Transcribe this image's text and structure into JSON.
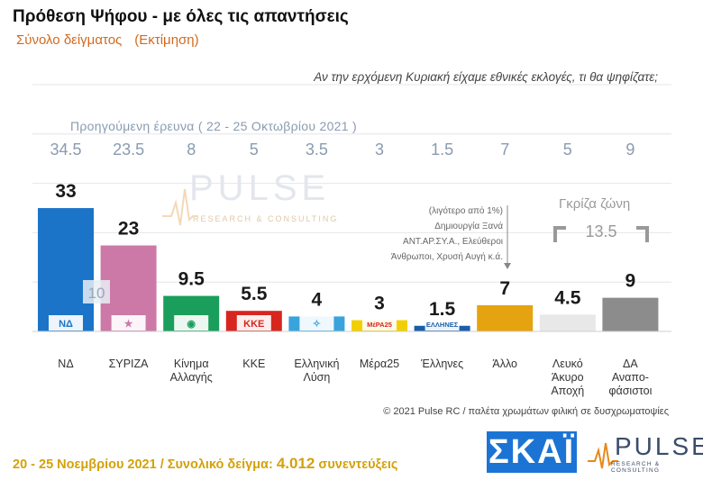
{
  "header": {
    "title": "Πρόθεση Ψήφου - με όλες τις απαντήσεις",
    "subtitle": "Σύνολο δείγματος",
    "subtitle_tag": "(Εκτίμηση)",
    "question": "Αν την ερχόμενη Κυριακή είχαμε εθνικές εκλογές, τι θα ψηφίζατε;",
    "previous_label": "Προηγούμενη έρευνα  ( 22 - 25 Οκτωβρίου 2021 )"
  },
  "chart_data": {
    "type": "bar",
    "categories": [
      "ΝΔ",
      "ΣΥΡΙΖΑ",
      "Κίνημα Αλλαγής",
      "ΚΚΕ",
      "Ελληνική Λύση",
      "Μέρα25",
      "Έλληνες",
      "Άλλο",
      "Λευκό Άκυρο Αποχή",
      "ΔΑ Αναποφάσιστοι"
    ],
    "category_lines": [
      [
        "ΝΔ"
      ],
      [
        "ΣΥΡΙΖΑ"
      ],
      [
        "Κίνημα",
        "Αλλαγής"
      ],
      [
        "ΚΚΕ"
      ],
      [
        "Ελληνική",
        "Λύση"
      ],
      [
        "Μέρα25"
      ],
      [
        "Έλληνες"
      ],
      [
        "Άλλο"
      ],
      [
        "Λευκό",
        "Άκυρο",
        "Αποχή"
      ],
      [
        "ΔΑ",
        "Αναπο-",
        "φάσιστοι"
      ]
    ],
    "values": [
      33,
      23,
      9.5,
      5.5,
      4,
      3,
      1.5,
      7,
      4.5,
      9
    ],
    "value_labels": [
      "33",
      "23",
      "9.5",
      "5.5",
      "4",
      "3",
      "1.5",
      "7",
      "4.5",
      "9"
    ],
    "previous_values": [
      34.5,
      23.5,
      8,
      5,
      3.5,
      3,
      1.5,
      7,
      5,
      9
    ],
    "previous_labels": [
      "34.5",
      "23.5",
      "8",
      "5",
      "3.5",
      "3",
      "1.5",
      "7",
      "5",
      "9"
    ],
    "colors": [
      "#1b74c8",
      "#cc79a7",
      "#1a9e5c",
      "#d7261e",
      "#3aa3dd",
      "#f2cf00",
      "#1a5ea8",
      "#e5a310",
      "#e8e8e8",
      "#8c8c8c"
    ],
    "logos": [
      "ΝΔ",
      "★",
      "◉",
      "ΚΚΕ",
      "✧",
      "ΜέΡΑ25",
      "ΕΛΛΗΝΕΣ",
      "",
      "",
      ""
    ],
    "overlay_label": "10",
    "ylim": [
      0,
      36
    ],
    "grid": true
  },
  "annotations": {
    "other_note": [
      "(λιγότερο από 1%)",
      "Δημιουργία Ξανά",
      "ΑΝΤ.ΑΡ.ΣΥ.Α., Ελεύθεροι",
      "Άνθρωποι, Χρυσή Αυγή   κ.ά."
    ],
    "gray_zone_label": "Γκρίζα ζώνη",
    "gray_zone_value": "13.5"
  },
  "watermark": {
    "word": "PULSE",
    "sub": "RESEARCH & CONSULTING"
  },
  "footer": {
    "copyright": "© 2021 Pulse RC  /  παλέτα χρωμάτων φιλική σε δυσχρωματοψίες",
    "dates": "20 - 25  Νοεμβρίου 2021  /  Συνολικό δείγμα:",
    "sample": "4.012",
    "sample_suffix": "συνεντεύξεις"
  },
  "logos": {
    "skai": "ΣΚΑΪ",
    "pulse": "PULSE",
    "pulse_sub": "RESEARCH & CONSULTING"
  }
}
